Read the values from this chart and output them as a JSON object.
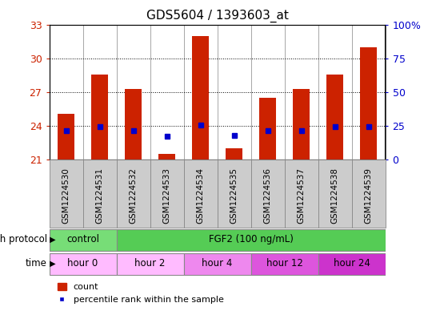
{
  "title": "GDS5604 / 1393603_at",
  "samples": [
    "GSM1224530",
    "GSM1224531",
    "GSM1224532",
    "GSM1224533",
    "GSM1224534",
    "GSM1224535",
    "GSM1224536",
    "GSM1224537",
    "GSM1224538",
    "GSM1224539"
  ],
  "bar_values": [
    25.1,
    28.6,
    27.3,
    21.5,
    32.0,
    22.0,
    26.5,
    27.3,
    28.6,
    31.0
  ],
  "percentile_values": [
    23.55,
    23.95,
    23.55,
    23.1,
    24.05,
    23.15,
    23.6,
    23.6,
    23.95,
    23.95
  ],
  "bar_color": "#cc2200",
  "percentile_color": "#0000cc",
  "bar_bottom": 21.0,
  "ylim_left": [
    21,
    33
  ],
  "ylim_right": [
    0,
    100
  ],
  "yticks_left": [
    21,
    24,
    27,
    30,
    33
  ],
  "yticks_right": [
    0,
    25,
    50,
    75,
    100
  ],
  "ytick_labels_left": [
    "21",
    "24",
    "27",
    "30",
    "33"
  ],
  "ytick_labels_right": [
    "0",
    "25",
    "50",
    "75",
    "100%"
  ],
  "grid_values": [
    24,
    27,
    30
  ],
  "growth_protocol_label": "growth protocol",
  "time_label": "time",
  "protocol_control_samples": [
    0,
    1
  ],
  "protocol_fgf2_samples": [
    2,
    3,
    4,
    5,
    6,
    7,
    8,
    9
  ],
  "protocol_control_label": "control",
  "protocol_fgf2_label": "FGF2 (100 ng/mL)",
  "protocol_control_color": "#77dd77",
  "protocol_fgf2_color": "#55cc55",
  "time_groups": [
    {
      "label": "hour 0",
      "samples": [
        0,
        1
      ],
      "color": "#ffbbff"
    },
    {
      "label": "hour 2",
      "samples": [
        2,
        3
      ],
      "color": "#ffbbff"
    },
    {
      "label": "hour 4",
      "samples": [
        4,
        5
      ],
      "color": "#ee88ee"
    },
    {
      "label": "hour 12",
      "samples": [
        6,
        7
      ],
      "color": "#dd55dd"
    },
    {
      "label": "hour 24",
      "samples": [
        8,
        9
      ],
      "color": "#cc33cc"
    }
  ],
  "legend_count_label": "count",
  "legend_percentile_label": "percentile rank within the sample",
  "left_ytick_color": "#cc2200",
  "right_ytick_color": "#0000cc",
  "bar_width": 0.5,
  "plot_bg_color": "#ffffff",
  "fig_bg_color": "#ffffff",
  "xticklabel_bg_color": "#cccccc",
  "xticklabel_border_color": "#888888"
}
